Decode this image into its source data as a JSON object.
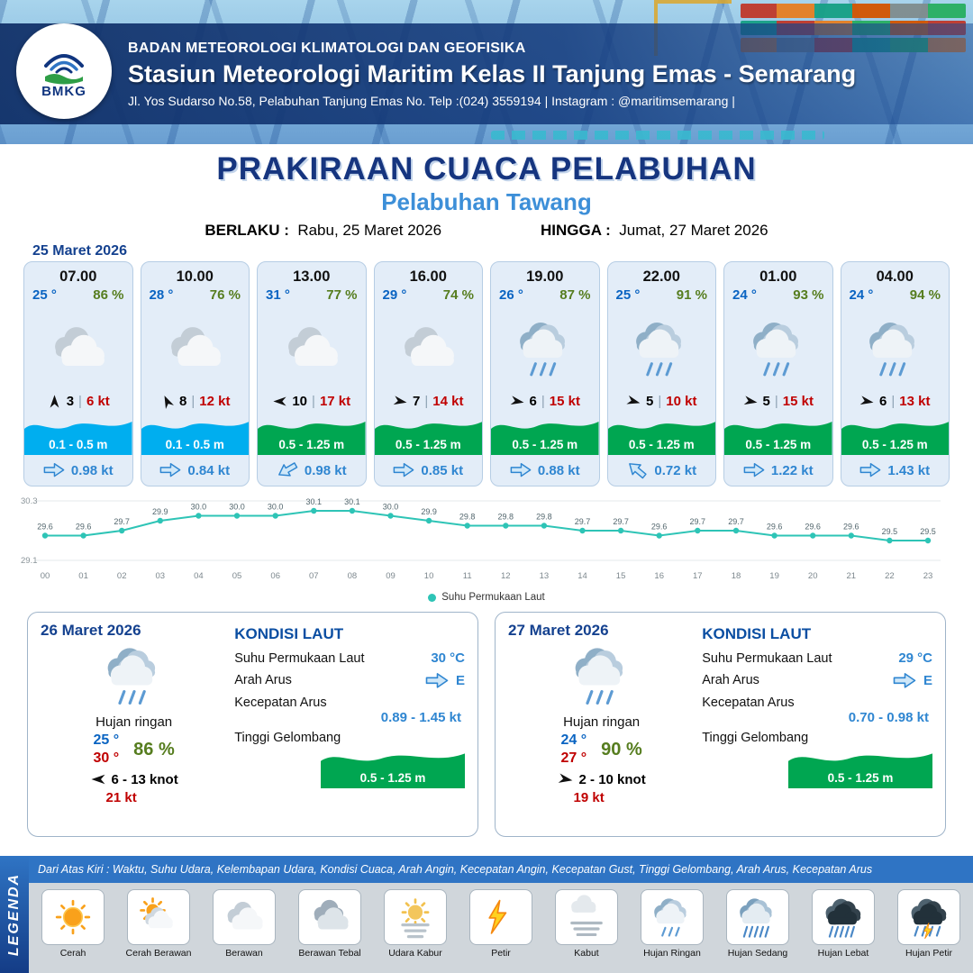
{
  "colors": {
    "header_blue": "#153c7e",
    "navy": "#16357f",
    "subtitle_blue": "#3d8fd8",
    "card_bg": "#e3edf8",
    "cyan_wave": "#00AEEF",
    "green_wave": "#00A651",
    "temp_blue": "#0a64c2",
    "humidity_green": "#567d1f",
    "gust_red": "#c00000",
    "chart_teal": "#2ec4b6"
  },
  "header": {
    "agency": "BADAN METEOROLOGI KLIMATOLOGI DAN GEOFISIKA",
    "station": "Stasiun Meteorologi Maritim Kelas II Tanjung Emas - Semarang",
    "address": "Jl. Yos Sudarso No.58, Pelabuhan Tanjung Emas No. Telp :(024) 3559194 | Instagram : @maritimsemarang |",
    "logo_text": "BMKG"
  },
  "title": {
    "main": "PRAKIRAAN CUACA PELABUHAN",
    "port": "Pelabuhan Tawang",
    "berlaku_label": "BERLAKU :",
    "berlaku_value": "Rabu, 25 Maret 2026",
    "hingga_label": "HINGGA :",
    "hingga_value": "Jumat, 27 Maret 2026"
  },
  "hourly": {
    "date": "25 Maret 2026",
    "cards": [
      {
        "time": "07.00",
        "temp": "25 °",
        "rh": "86 %",
        "icon": "berawan",
        "wind_deg": -90,
        "wind_val": "3",
        "gust": "6 kt",
        "wave": "0.1 - 0.5 m",
        "wave_color": "cyan",
        "cur_deg": 0,
        "cur_val": "0.98 kt"
      },
      {
        "time": "10.00",
        "temp": "28 °",
        "rh": "76 %",
        "icon": "berawan",
        "wind_deg": -115,
        "wind_val": "8",
        "gust": "12 kt",
        "wave": "0.1 - 0.5 m",
        "wave_color": "cyan",
        "cur_deg": 0,
        "cur_val": "0.84 kt"
      },
      {
        "time": "13.00",
        "temp": "31 °",
        "rh": "77 %",
        "icon": "berawan",
        "wind_deg": 180,
        "wind_val": "10",
        "gust": "17 kt",
        "wave": "0.5 - 1.25 m",
        "wave_color": "green",
        "cur_deg": 150,
        "cur_val": "0.98 kt"
      },
      {
        "time": "16.00",
        "temp": "29 °",
        "rh": "74 %",
        "icon": "berawan",
        "wind_deg": 10,
        "wind_val": "7",
        "gust": "14 kt",
        "wave": "0.5 - 1.25 m",
        "wave_color": "green",
        "cur_deg": 0,
        "cur_val": "0.85 kt"
      },
      {
        "time": "19.00",
        "temp": "26 °",
        "rh": "87 %",
        "icon": "hujan-ringan",
        "wind_deg": 10,
        "wind_val": "6",
        "gust": "15 kt",
        "wave": "0.5 - 1.25 m",
        "wave_color": "green",
        "cur_deg": 0,
        "cur_val": "0.88 kt"
      },
      {
        "time": "22.00",
        "temp": "25 °",
        "rh": "91 %",
        "icon": "hujan-ringan",
        "wind_deg": 15,
        "wind_val": "5",
        "gust": "10 kt",
        "wave": "0.5 - 1.25 m",
        "wave_color": "green",
        "cur_deg": -140,
        "cur_val": "0.72 kt"
      },
      {
        "time": "01.00",
        "temp": "24 °",
        "rh": "93 %",
        "icon": "hujan-ringan",
        "wind_deg": 10,
        "wind_val": "5",
        "gust": "15 kt",
        "wave": "0.5 - 1.25 m",
        "wave_color": "green",
        "cur_deg": 0,
        "cur_val": "1.22 kt"
      },
      {
        "time": "04.00",
        "temp": "24 °",
        "rh": "94 %",
        "icon": "hujan-ringan",
        "wind_deg": 10,
        "wind_val": "6",
        "gust": "13 kt",
        "wave": "0.5 - 1.25 m",
        "wave_color": "green",
        "cur_deg": 0,
        "cur_val": "1.43 kt"
      }
    ]
  },
  "chart_data": {
    "type": "line",
    "x": [
      "00",
      "01",
      "02",
      "03",
      "04",
      "05",
      "06",
      "07",
      "08",
      "09",
      "10",
      "11",
      "12",
      "13",
      "14",
      "15",
      "16",
      "17",
      "18",
      "19",
      "20",
      "21",
      "22",
      "23"
    ],
    "series": [
      {
        "name": "Suhu Permukaan Laut",
        "values": [
          29.6,
          29.6,
          29.7,
          29.9,
          30.0,
          30.0,
          30.0,
          30.1,
          30.1,
          30.0,
          29.9,
          29.8,
          29.8,
          29.8,
          29.7,
          29.7,
          29.6,
          29.7,
          29.7,
          29.6,
          29.6,
          29.6,
          29.5,
          29.5
        ]
      }
    ],
    "ylim": [
      29.1,
      30.3
    ],
    "color": "#2ec4b6",
    "legend": "Suhu Permukaan Laut"
  },
  "daily": {
    "cards": [
      {
        "date": "26 Maret 2026",
        "icon": "hujan-ringan",
        "cond": "Hujan ringan",
        "tmin": "25 °",
        "tmax": "30 °",
        "rh": "86 %",
        "wind_deg": 180,
        "wind_range": "6  - 13 knot",
        "gust": "21 kt",
        "sea_title": "KONDISI LAUT",
        "sst_label": "Suhu Permukaan Laut",
        "sst": "30 °C",
        "arus_label": "Arah Arus",
        "arus_dir": "E",
        "arus_deg": 0,
        "kec_label": "Kecepatan Arus",
        "kec": "0.89 - 1.45 kt",
        "gel_label": "Tinggi Gelombang",
        "gel": "0.5 - 1.25 m"
      },
      {
        "date": "27 Maret 2026",
        "icon": "hujan-ringan",
        "cond": "Hujan ringan",
        "tmin": "24 °",
        "tmax": "27 °",
        "rh": "90 %",
        "wind_deg": 10,
        "wind_range": "2  - 10 knot",
        "gust": "19 kt",
        "sea_title": "KONDISI LAUT",
        "sst_label": "Suhu Permukaan Laut",
        "sst": "29 °C",
        "arus_label": "Arah Arus",
        "arus_dir": "E",
        "arus_deg": 0,
        "kec_label": "Kecepatan Arus",
        "kec": "0.70 - 0.98 kt",
        "gel_label": "Tinggi Gelombang",
        "gel": "0.5 - 1.25 m"
      }
    ]
  },
  "legend": {
    "title": "LEGENDA",
    "description": "Dari Atas Kiri : Waktu, Suhu Udara, Kelembapan Udara, Kondisi Cuaca, Arah Angin, Kecepatan Angin, Kecepatan Gust, Tinggi Gelombang, Arah Arus, Kecepatan Arus",
    "items": [
      {
        "icon": "cerah",
        "label": "Cerah"
      },
      {
        "icon": "cerah-berawan",
        "label": "Cerah Berawan"
      },
      {
        "icon": "berawan",
        "label": "Berawan"
      },
      {
        "icon": "berawan-tebal",
        "label": "Berawan Tebal"
      },
      {
        "icon": "udara-kabur",
        "label": "Udara Kabur"
      },
      {
        "icon": "petir",
        "label": "Petir"
      },
      {
        "icon": "kabut",
        "label": "Kabut"
      },
      {
        "icon": "hujan-ringan",
        "label": "Hujan Ringan"
      },
      {
        "icon": "hujan-sedang",
        "label": "Hujan Sedang"
      },
      {
        "icon": "hujan-lebat",
        "label": "Hujan Lebat"
      },
      {
        "icon": "hujan-petir",
        "label": "Hujan Petir"
      }
    ]
  }
}
